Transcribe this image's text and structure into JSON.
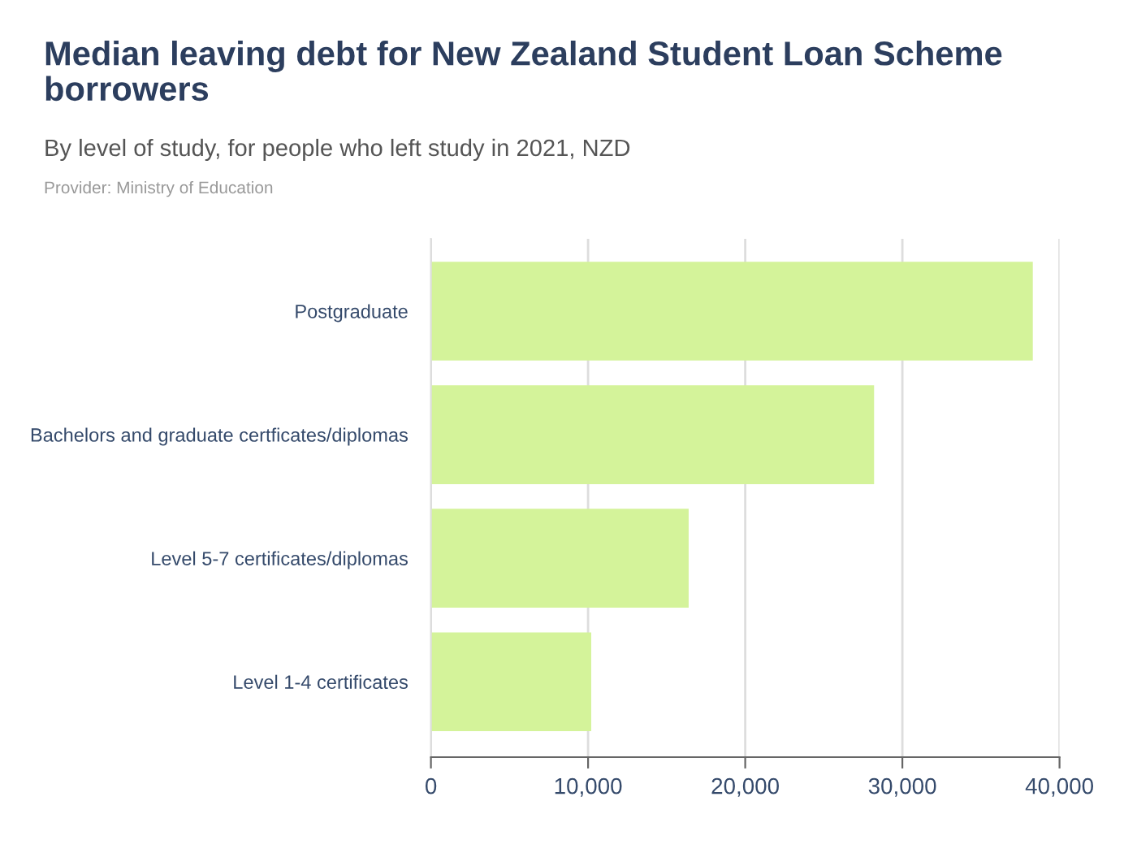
{
  "chart_data": {
    "type": "bar",
    "orientation": "horizontal",
    "title": "Median leaving debt for New Zealand Student Loan Scheme borrowers",
    "subtitle": "By level of study, for people who left study in 2021, NZD",
    "annotations": [
      "Provider: Ministry of Education"
    ],
    "categories": [
      "Postgraduate",
      "Bachelors and graduate certficates/diplomas",
      "Level 5-7 certificates/diplomas",
      "Level 1-4 certificates"
    ],
    "values": [
      38300,
      28200,
      16400,
      10200
    ],
    "color": "#d4f39a",
    "xlim": [
      0,
      40000
    ],
    "xticks": [
      0,
      {
        "value": 10000,
        "label": "10,000"
      },
      {
        "value": 20000,
        "label": "20,000"
      },
      {
        "value": 30000,
        "label": "30,000"
      },
      {
        "value": 40000,
        "label": "40,000"
      }
    ],
    "grid": "x"
  }
}
